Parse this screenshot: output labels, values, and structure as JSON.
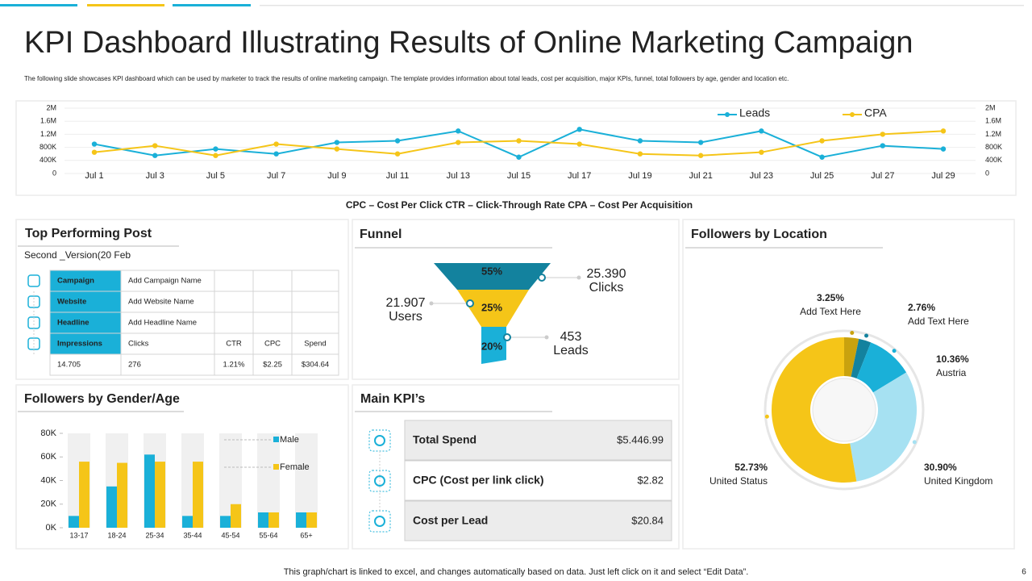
{
  "header": {
    "title": "KPI Dashboard Illustrating Results of Online Marketing Campaign",
    "description": "The  following slide showcases KPI dashboard which can be used by marketer to track the results of online marketing campaign. The  template provides information about total leads, cost per acquisition, major KPIs, funnel, total followers by age, gender and location etc."
  },
  "chart_data": [
    {
      "type": "line",
      "categories": [
        "Jul 1",
        "Jul 3",
        "Jul 5",
        "Jul 7",
        "Jul 9",
        "Jul 11",
        "Jul 13",
        "Jul 15",
        "Jul 17",
        "Jul 19",
        "Jul 21",
        "Jul 23",
        "Jul 25",
        "Jul 27",
        "Jul 29"
      ],
      "series": [
        {
          "name": "Leads",
          "color": "#1ab0d8",
          "values": [
            900000,
            550000,
            750000,
            600000,
            950000,
            1000000,
            1300000,
            500000,
            1350000,
            1000000,
            950000,
            1300000,
            500000,
            850000,
            750000
          ]
        },
        {
          "name": "CPA",
          "color": "#f5c518",
          "axis": "y2",
          "values": [
            650000,
            850000,
            550000,
            900000,
            750000,
            600000,
            950000,
            1000000,
            900000,
            600000,
            550000,
            650000,
            1000000,
            1200000,
            1300000
          ]
        }
      ],
      "ylim": [
        0,
        2000000
      ],
      "yticks": [
        0,
        {
          "value": 400000,
          "label": "400K"
        },
        {
          "value": 800000,
          "label": "800K"
        },
        {
          "value": 1200000,
          "label": "1.2M"
        },
        {
          "value": 1600000,
          "label": "1.6M"
        },
        {
          "value": 2000000,
          "label": "2M"
        }
      ],
      "y2lim": [
        0,
        2000000
      ],
      "y2ticks": [
        0,
        {
          "value": 400000,
          "label": "400K"
        },
        {
          "value": 800000,
          "label": "800K"
        },
        {
          "value": 1200000,
          "label": "1.2M"
        },
        {
          "value": 1600000,
          "label": "1.6M"
        },
        {
          "value": 2000000,
          "label": "2M"
        }
      ],
      "grid": true,
      "legend": "top-right"
    },
    {
      "type": "funnel",
      "title": "Funnel",
      "values": [
        55,
        25,
        20
      ],
      "value_labels": [
        "55%",
        "25%",
        "20%"
      ],
      "colors": [
        "#13829e",
        "#f5c518",
        "#1ab0d8"
      ]
    },
    {
      "type": "donut",
      "title": "Followers by Location",
      "categories": [
        "Add Text Here",
        "Add Text Here",
        "Austria",
        "United Kingdom",
        "United Status"
      ],
      "values": [
        3.25,
        2.76,
        10.36,
        30.9,
        52.73
      ],
      "value_labels": [
        "3.25%",
        "2.76%",
        "10.36%",
        "30.90%",
        "52.73%"
      ],
      "colors": [
        "#c9a20e",
        "#13829e",
        "#1ab0d8",
        "#a6e1f2",
        "#f5c518"
      ]
    },
    {
      "type": "bar",
      "title": "Followers by Gender/Age",
      "categories": [
        "13-17",
        "18-24",
        "25-34",
        "35-44",
        "45-54",
        "55-64",
        "65+"
      ],
      "series": [
        {
          "name": "Male",
          "color": "#1ab0d8",
          "values": [
            10000,
            35000,
            62000,
            10000,
            10000,
            13000,
            13000
          ]
        },
        {
          "name": "Female",
          "color": "#f5c518",
          "values": [
            56000,
            55000,
            56000,
            56000,
            20000,
            13000,
            13000
          ]
        }
      ],
      "ylim": [
        0,
        80000
      ],
      "yticks": [
        {
          "value": 0,
          "label": "0K"
        },
        {
          "value": 20000,
          "label": "20K"
        },
        {
          "value": 40000,
          "label": "40K"
        },
        {
          "value": 60000,
          "label": "60K"
        },
        {
          "value": 80000,
          "label": "80K"
        }
      ]
    }
  ],
  "abbreviations": "CPC – Cost Per Click CTR – Click-Through  Rate CPA – Cost Per Acquisition",
  "top_post": {
    "title": "Top Performing Post",
    "subtitle": "Second _Version(20  Feb",
    "rows": [
      [
        "Campaign",
        "Add Campaign Name"
      ],
      [
        "Website",
        "Add Website Name"
      ],
      [
        "Headline",
        "Add Headline Name"
      ],
      [
        "Impressions",
        "Clicks",
        "CTR",
        "CPC",
        "Spend"
      ],
      [
        "14.705",
        "276",
        "1.21%",
        "$2.25",
        "$304.64"
      ]
    ]
  },
  "funnel_stats": [
    {
      "value": "25.390",
      "label": "Clicks"
    },
    {
      "value": "21.907",
      "label": "Users"
    },
    {
      "value": "453",
      "label": "Leads"
    }
  ],
  "main_kpis": {
    "title": "Main KPI’s",
    "rows": [
      [
        "Total Spend",
        "$5.446.99"
      ],
      [
        "CPC (Cost  per link click)",
        "$2.82"
      ],
      [
        "Cost  per Lead",
        "$20.84"
      ]
    ]
  },
  "footer": "This graph/chart is linked to excel,  and changes automatically based on data. Just left click on it and select “Edit Data”.",
  "page_number": "6"
}
